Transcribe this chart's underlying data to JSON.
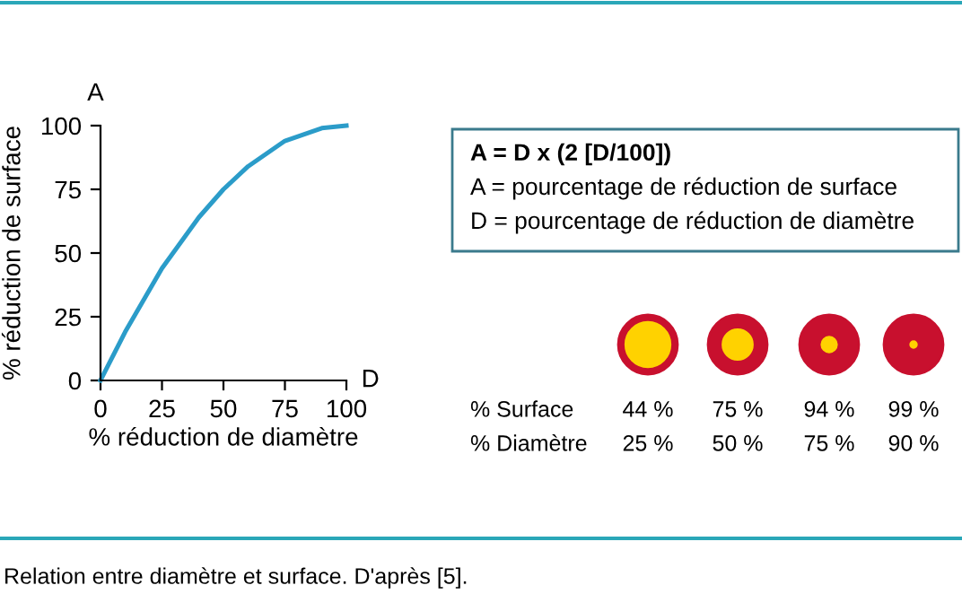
{
  "chart_data": {
    "type": "line",
    "ylabel": "% réduction de surface",
    "xlabel": "% réduction de diamètre",
    "x": [
      0,
      10,
      25,
      40,
      50,
      60,
      75,
      90,
      100
    ],
    "series": [
      {
        "color": "#2b9cc9",
        "values": [
          0,
          19,
          44,
          64,
          75,
          84,
          94,
          99,
          100
        ]
      }
    ],
    "xlim": [
      0,
      100
    ],
    "ylim": [
      0,
      100
    ],
    "xticks": [
      0,
      25,
      50,
      75,
      100
    ],
    "yticks": [
      0,
      25,
      50,
      75,
      100
    ],
    "marker": "none",
    "line_style": "solid",
    "grid": false,
    "legend": false,
    "annotations": [
      "A",
      "D",
      "A = D x (2 [D/100])",
      "A = pourcentage de réduction de surface",
      "D = pourcentage de réduction de diamètre",
      "% Surface",
      "44 %",
      "75 %",
      "94 %",
      "99 %",
      "% Diamètre",
      "25 %",
      "50 %",
      "75 %",
      "90 %",
      "Relation entre diamètre et surface. D'après [5]."
    ]
  }
}
